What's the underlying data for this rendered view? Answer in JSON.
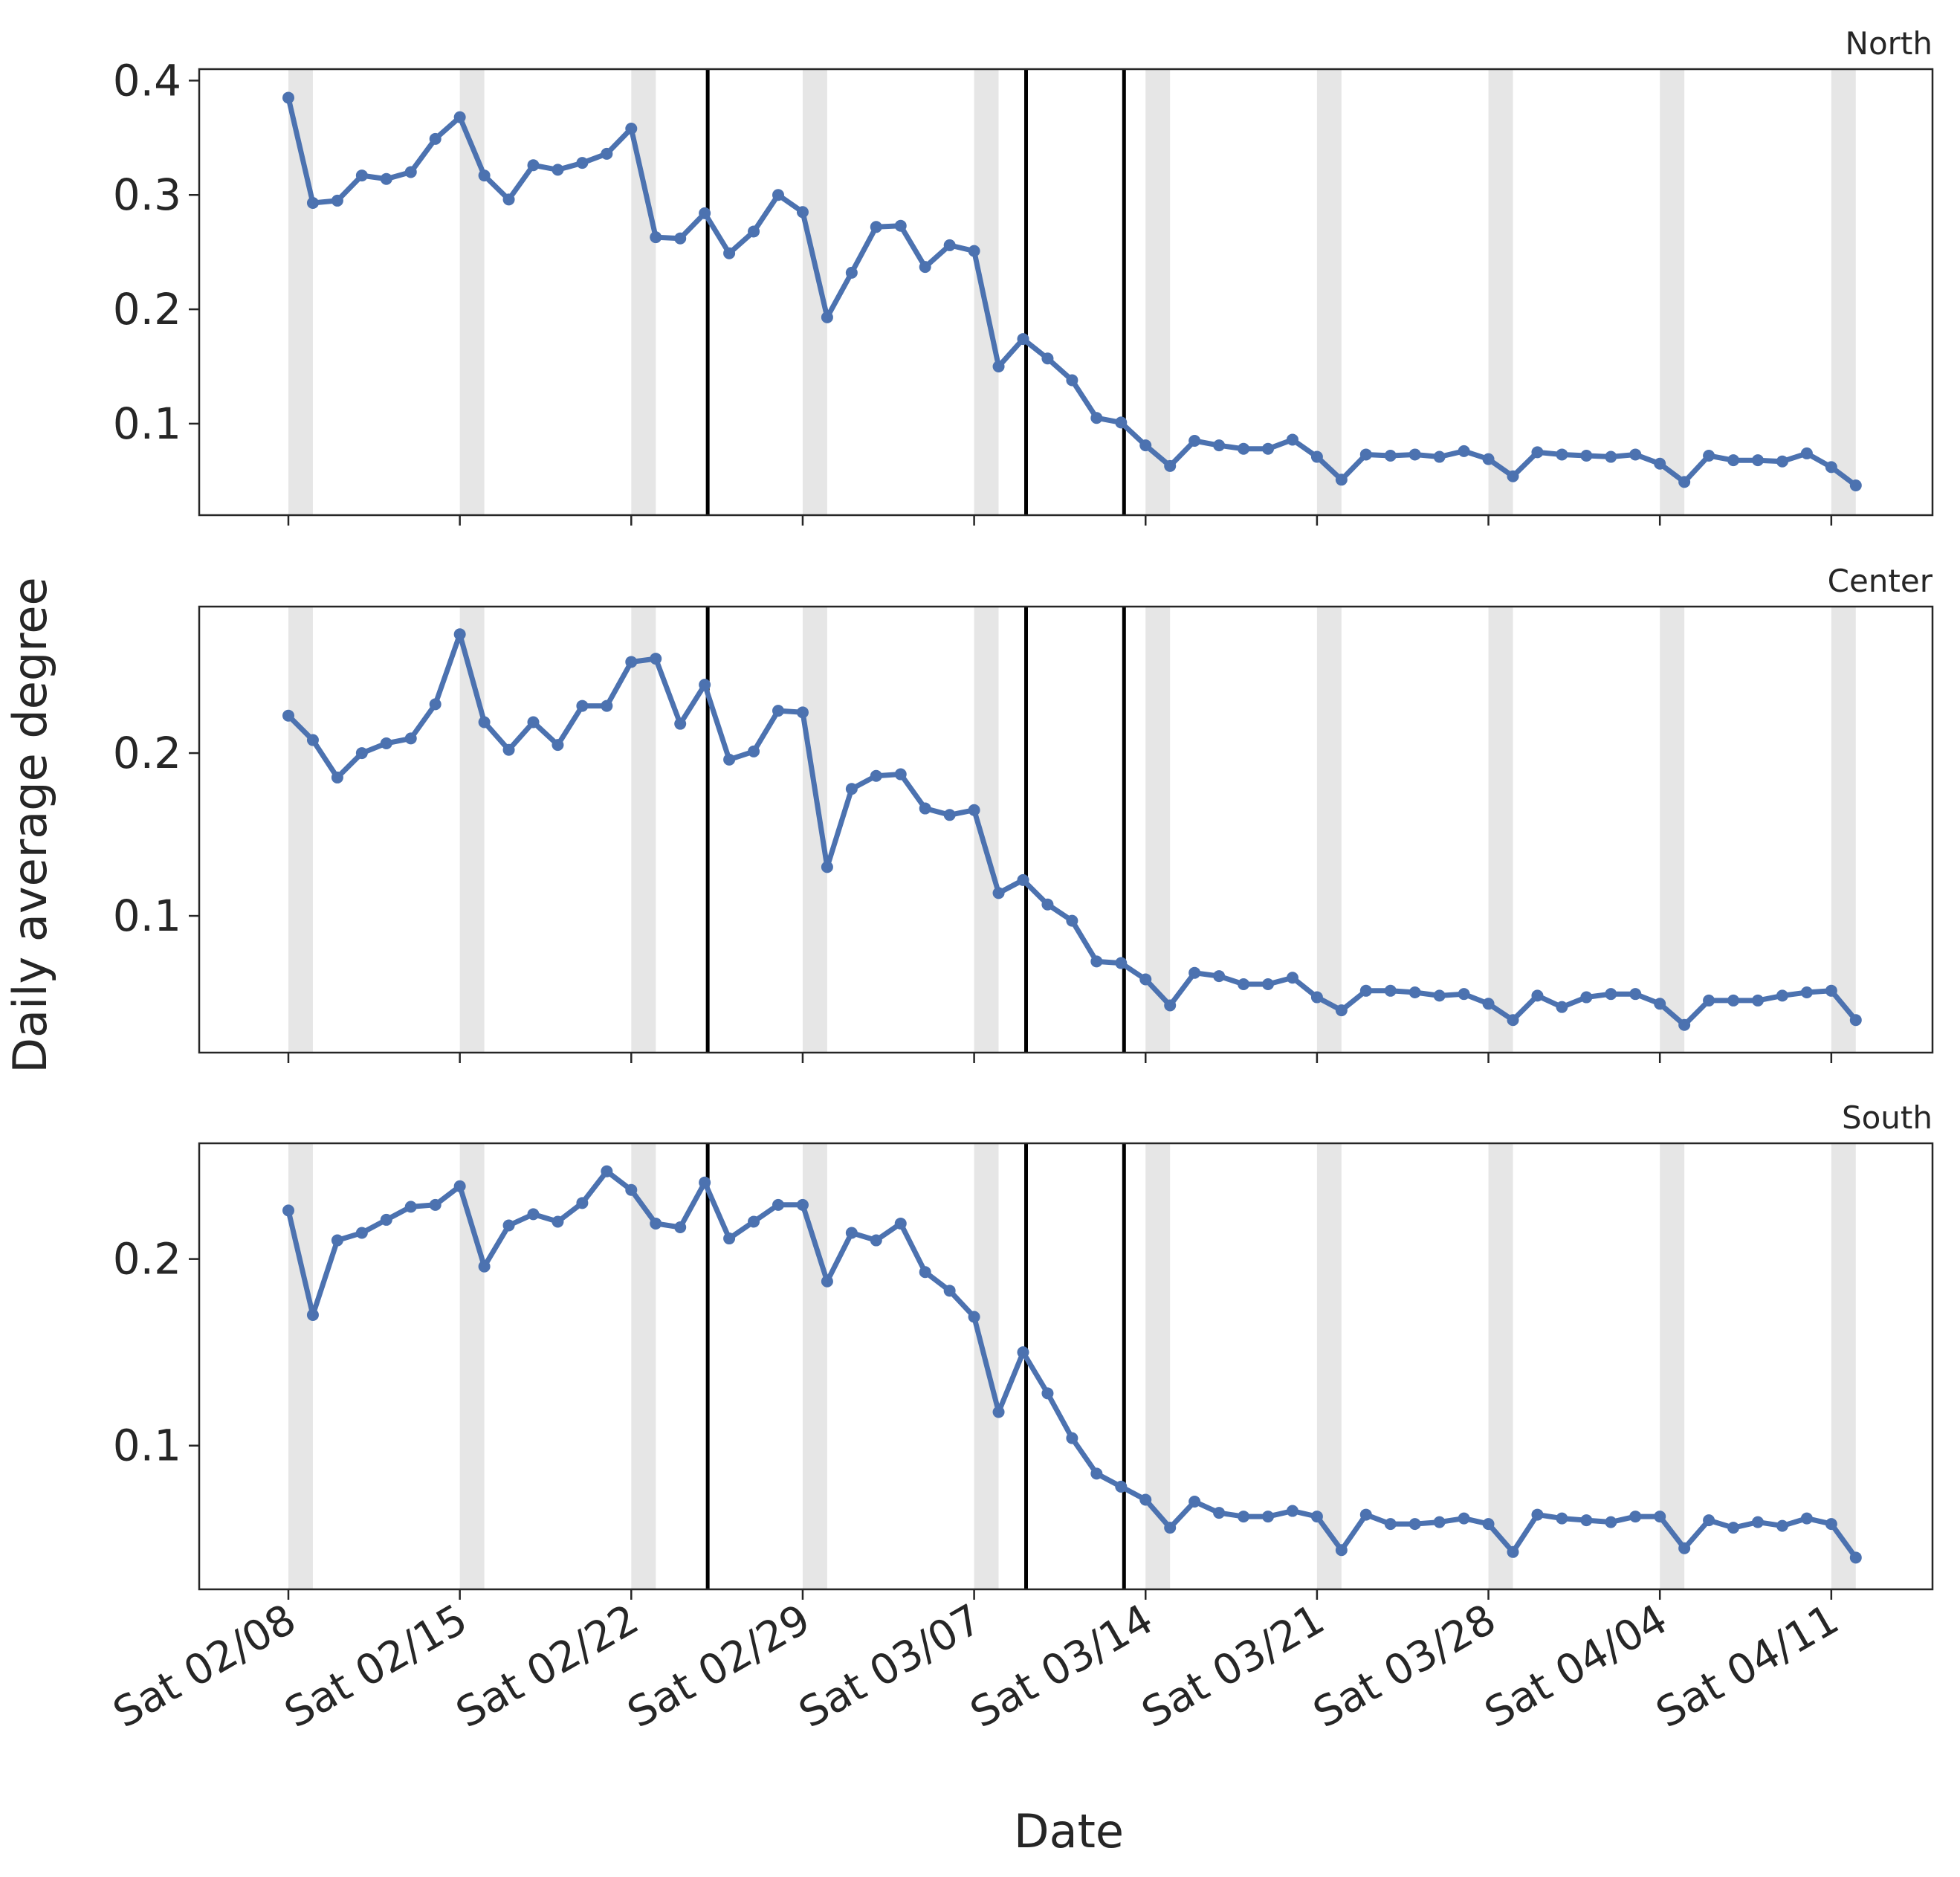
{
  "chart_data": {
    "type": "line",
    "xlabel": "Date",
    "ylabel": "Daily average degree",
    "x_start": "2020-02-08",
    "x_tick_labels": [
      "Sat 02/08",
      "Sat 02/15",
      "Sat 02/22",
      "Sat 02/29",
      "Sat 03/07",
      "Sat 03/14",
      "Sat 03/21",
      "Sat 03/28",
      "Sat 04/04",
      "Sat 04/11"
    ],
    "x_tick_dates": [
      "2020-02-08",
      "2020-02-15",
      "2020-02-22",
      "2020-02-29",
      "2020-03-07",
      "2020-03-14",
      "2020-03-21",
      "2020-03-28",
      "2020-04-04",
      "2020-04-11"
    ],
    "weekend_shading": "Saturday-Sunday bands",
    "vertical_lines": [
      "2020-02-25",
      "2020-03-09",
      "2020-03-13"
    ],
    "grid": false,
    "colors": {
      "line": "#4c72b0",
      "weekend": "#e6e6e6",
      "vline": "#000000",
      "text": "#262626"
    },
    "panels": [
      {
        "title": "North",
        "ylim": [
          0.02,
          0.41
        ],
        "yticks": [
          0.1,
          0.2,
          0.3,
          0.4
        ],
        "ytick_labels": [
          "0.1",
          "0.2",
          "0.3",
          "0.4"
        ],
        "values": [
          0.385,
          0.293,
          0.295,
          0.317,
          0.314,
          0.32,
          0.349,
          0.368,
          0.317,
          0.296,
          0.326,
          0.322,
          0.328,
          0.336,
          0.358,
          0.263,
          0.262,
          0.284,
          0.249,
          0.268,
          0.3,
          0.285,
          0.193,
          0.232,
          0.272,
          0.273,
          0.237,
          0.256,
          0.251,
          0.15,
          0.174,
          0.157,
          0.138,
          0.105,
          0.101,
          0.081,
          0.063,
          0.085,
          0.081,
          0.078,
          0.078,
          0.086,
          0.071,
          0.051,
          0.073,
          0.072,
          0.073,
          0.071,
          0.076,
          0.069,
          0.054,
          0.075,
          0.073,
          0.072,
          0.071,
          0.073,
          0.065,
          0.049,
          0.072,
          0.068,
          0.068,
          0.067,
          0.074,
          0.062,
          0.046
        ]
      },
      {
        "title": "Center",
        "ylim": [
          0.016,
          0.29
        ],
        "yticks": [
          0.1,
          0.2
        ],
        "ytick_labels": [
          "0.1",
          "0.2"
        ],
        "values": [
          0.223,
          0.208,
          0.185,
          0.2,
          0.206,
          0.209,
          0.23,
          0.273,
          0.219,
          0.202,
          0.219,
          0.205,
          0.229,
          0.229,
          0.256,
          0.258,
          0.218,
          0.242,
          0.196,
          0.201,
          0.226,
          0.225,
          0.13,
          0.178,
          0.186,
          0.187,
          0.166,
          0.162,
          0.165,
          0.114,
          0.122,
          0.107,
          0.097,
          0.072,
          0.071,
          0.061,
          0.045,
          0.065,
          0.063,
          0.058,
          0.058,
          0.062,
          0.05,
          0.042,
          0.054,
          0.054,
          0.053,
          0.051,
          0.052,
          0.046,
          0.036,
          0.051,
          0.044,
          0.05,
          0.052,
          0.052,
          0.046,
          0.033,
          0.048,
          0.048,
          0.048,
          0.051,
          0.053,
          0.054,
          0.036
        ]
      },
      {
        "title": "South",
        "ylim": [
          0.023,
          0.262
        ],
        "yticks": [
          0.1,
          0.2
        ],
        "ytick_labels": [
          "0.1",
          "0.2"
        ],
        "values": [
          0.226,
          0.17,
          0.21,
          0.214,
          0.221,
          0.228,
          0.229,
          0.239,
          0.196,
          0.218,
          0.224,
          0.22,
          0.23,
          0.247,
          0.237,
          0.219,
          0.217,
          0.241,
          0.211,
          0.22,
          0.229,
          0.229,
          0.188,
          0.214,
          0.21,
          0.219,
          0.193,
          0.183,
          0.169,
          0.118,
          0.15,
          0.128,
          0.104,
          0.085,
          0.078,
          0.071,
          0.056,
          0.07,
          0.064,
          0.062,
          0.062,
          0.065,
          0.062,
          0.044,
          0.063,
          0.058,
          0.058,
          0.059,
          0.061,
          0.058,
          0.043,
          0.063,
          0.061,
          0.06,
          0.059,
          0.062,
          0.062,
          0.045,
          0.06,
          0.056,
          0.059,
          0.057,
          0.061,
          0.058,
          0.04
        ]
      }
    ]
  }
}
